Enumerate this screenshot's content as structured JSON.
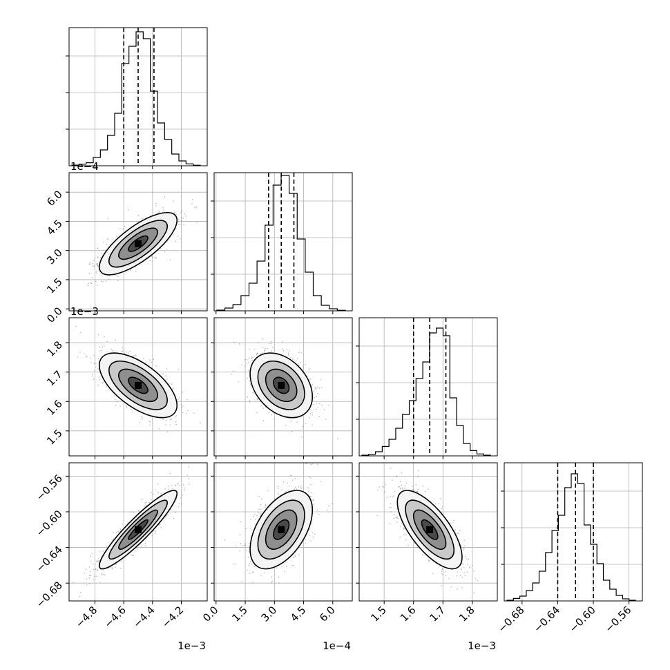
{
  "chart_data": {
    "type": "corner",
    "parameters": [
      {
        "range": [
          -4.98,
          -4.02
        ],
        "ticks": [
          -4.8,
          -4.6,
          -4.4,
          -4.2
        ],
        "tick_labels": [
          "−4.8",
          "−4.6",
          "−4.4",
          "−4.2"
        ],
        "offset_label": "1e−3",
        "quantiles": [
          -4.6,
          -4.5,
          -4.39
        ],
        "hist_bins": [
          0.005,
          0.012,
          0.022,
          0.06,
          0.115,
          0.22,
          0.38,
          0.74,
          0.865,
          0.97,
          0.92,
          0.54,
          0.31,
          0.19,
          0.085,
          0.035,
          0.014,
          0.004
        ]
      },
      {
        "range": [
          -0.1,
          7.0
        ],
        "ticks": [
          0.0,
          1.5,
          3.0,
          4.5,
          6.0
        ],
        "tick_labels": [
          "0.0",
          "1.5",
          "3.0",
          "4.5",
          "6.0"
        ],
        "offset_label": "1e−4",
        "quantiles": [
          2.7,
          3.35,
          4.0
        ],
        "hist_bins": [
          0.005,
          0.02,
          0.045,
          0.11,
          0.2,
          0.36,
          0.62,
          0.91,
          0.98,
          0.85,
          0.52,
          0.28,
          0.11,
          0.04,
          0.015,
          0.004
        ]
      },
      {
        "range": [
          1.415,
          1.885
        ],
        "ticks": [
          1.5,
          1.6,
          1.7,
          1.8
        ],
        "tick_labels": [
          "1.5",
          "1.6",
          "1.7",
          "1.8"
        ],
        "offset_label": "1e−3",
        "quantiles": [
          1.6,
          1.655,
          1.71
        ],
        "hist_bins": [
          0.005,
          0.012,
          0.03,
          0.068,
          0.12,
          0.2,
          0.3,
          0.4,
          0.56,
          0.68,
          0.89,
          0.925,
          0.87,
          0.42,
          0.22,
          0.09,
          0.038,
          0.014,
          0.005
        ]
      },
      {
        "range": [
          -0.7,
          -0.545
        ],
        "ticks": [
          -0.68,
          -0.64,
          -0.6,
          -0.56
        ],
        "tick_labels": [
          "−0.68",
          "−0.64",
          "−0.60",
          "−0.56"
        ],
        "offset_label": "",
        "quantiles": [
          -0.64,
          -0.62,
          -0.6
        ],
        "hist_bins": [
          0.005,
          0.018,
          0.035,
          0.075,
          0.13,
          0.215,
          0.35,
          0.51,
          0.62,
          0.82,
          0.92,
          0.85,
          0.55,
          0.41,
          0.27,
          0.15,
          0.085,
          0.04,
          0.015,
          0.005
        ]
      }
    ],
    "pairs": [
      {
        "x": 0,
        "y": 1,
        "mean": [
          -4.5,
          3.35
        ],
        "sd": [
          0.135,
          0.8
        ],
        "corr": 0.75
      },
      {
        "x": 0,
        "y": 2,
        "mean": [
          -4.5,
          1.655
        ],
        "sd": [
          0.135,
          0.055
        ],
        "corr": -0.62
      },
      {
        "x": 1,
        "y": 2,
        "mean": [
          3.35,
          1.655
        ],
        "sd": [
          0.8,
          0.055
        ],
        "corr": -0.35
      },
      {
        "x": 0,
        "y": 3,
        "mean": [
          -4.5,
          -0.62
        ],
        "sd": [
          0.135,
          0.022
        ],
        "corr": 0.92
      },
      {
        "x": 1,
        "y": 3,
        "mean": [
          3.35,
          -0.62
        ],
        "sd": [
          0.8,
          0.022
        ],
        "corr": 0.5
      },
      {
        "x": 2,
        "y": 3,
        "mean": [
          1.655,
          -0.62
        ],
        "sd": [
          0.055,
          0.022
        ],
        "corr": -0.7
      }
    ],
    "contour_levels_sigma": [
      0.5,
      1.0,
      1.5,
      2.0
    ],
    "grid": true,
    "colors": {
      "line": "#000000",
      "grid": "#b0b0b0",
      "points": "#8c8c8c"
    }
  }
}
